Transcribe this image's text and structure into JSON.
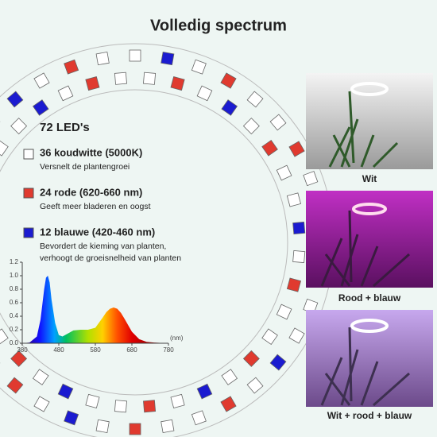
{
  "header": {
    "title": "Volledig spectrum"
  },
  "leds": {
    "total": "72 LED's",
    "items": [
      {
        "title": "36 koudwitte (5000K)",
        "description": "Versnelt de plantengroei"
      },
      {
        "title": "24 rode (620-660 nm)",
        "description": "Geeft meer bladeren en oogst"
      },
      {
        "title": "12 blauwe (420-460 nm)",
        "description": [
          "Bevordert de kieming van planten,",
          "verhoogt de groeisnelheid van planten"
        ]
      }
    ]
  },
  "chart_data": {
    "type": "area",
    "x_unit": "(nm)",
    "x": [
      380,
      400,
      420,
      430,
      440,
      445,
      450,
      455,
      460,
      470,
      480,
      490,
      500,
      520,
      540,
      560,
      580,
      600,
      610,
      620,
      630,
      640,
      650,
      660,
      680,
      700,
      720,
      740,
      780
    ],
    "values": [
      0,
      0.01,
      0.1,
      0.35,
      0.8,
      0.97,
      1.0,
      0.9,
      0.65,
      0.3,
      0.12,
      0.1,
      0.13,
      0.19,
      0.2,
      0.2,
      0.23,
      0.38,
      0.46,
      0.51,
      0.53,
      0.51,
      0.45,
      0.36,
      0.17,
      0.06,
      0.02,
      0.01,
      0
    ],
    "xlim": [
      380,
      780
    ],
    "ylim": [
      0,
      1.2
    ],
    "xticks": [
      380,
      480,
      580,
      680,
      780
    ],
    "yticks": [
      {
        "value": 0,
        "label": "0.0"
      },
      {
        "value": 0.2,
        "label": "0.2"
      },
      {
        "value": 0.4,
        "label": "0.4"
      },
      {
        "value": 0.6,
        "label": "0.6"
      },
      {
        "value": 0.8,
        "label": "0.8"
      },
      {
        "value": 1,
        "label": "1.0"
      },
      {
        "value": 1.2,
        "label": "1.2"
      }
    ]
  },
  "photos": [
    {
      "caption": "Wit"
    },
    {
      "caption": "Rood + blauw"
    },
    {
      "caption": "Wit + rood + blauw"
    }
  ]
}
